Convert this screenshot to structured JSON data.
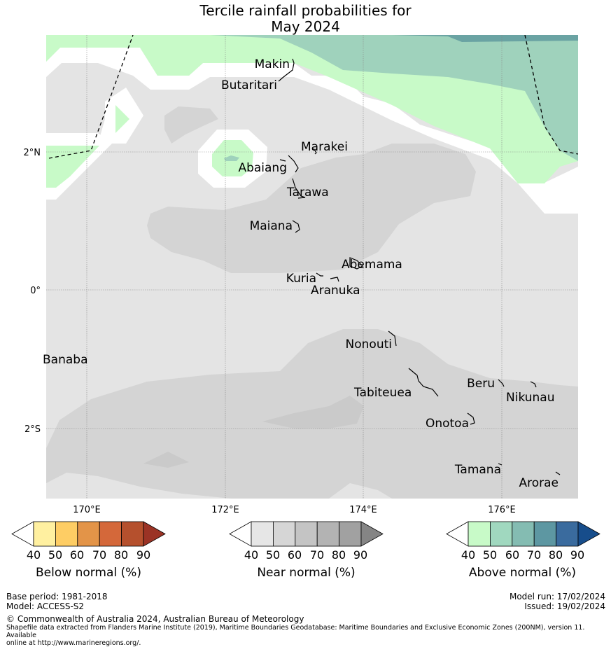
{
  "title_line1": "Tercile rainfall probabilities for",
  "title_line2": "May 2024",
  "colors": {
    "near_40": "#e4e4e4",
    "near_50": "#d4d4d4",
    "white": "#ffffff",
    "above_40": "#c8fac8",
    "above_50": "#9fd2bc",
    "above_70": "#6aa3a3"
  },
  "axes": {
    "lon_ticks": [
      "170°E",
      "172°E",
      "174°E",
      "176°E"
    ],
    "lat_ticks": [
      "2°N",
      "0°",
      "2°S"
    ]
  },
  "islands": [
    {
      "name": "Makin"
    },
    {
      "name": "Butaritari"
    },
    {
      "name": "Marakei"
    },
    {
      "name": "Abaiang"
    },
    {
      "name": "Tarawa"
    },
    {
      "name": "Maiana"
    },
    {
      "name": "Abemama"
    },
    {
      "name": "Kuria"
    },
    {
      "name": "Aranuka"
    },
    {
      "name": "Nonouti"
    },
    {
      "name": "Banaba"
    },
    {
      "name": "Beru"
    },
    {
      "name": "Tabiteuea"
    },
    {
      "name": "Nikunau"
    },
    {
      "name": "Onotoa"
    },
    {
      "name": "Tamana"
    },
    {
      "name": "Arorae"
    }
  ],
  "colorbars": {
    "below": {
      "label": "Below normal (%)",
      "ticks": [
        "40",
        "50",
        "60",
        "70",
        "80",
        "90"
      ],
      "colors": [
        "#fff0a0",
        "#fecd64",
        "#e39448",
        "#d4683a",
        "#b5502d"
      ],
      "arrow": "#9b3325"
    },
    "near": {
      "label": "Near normal (%)",
      "ticks": [
        "40",
        "50",
        "60",
        "70",
        "80",
        "90"
      ],
      "colors": [
        "#e6e6e6",
        "#d6d6d6",
        "#c4c4c4",
        "#b3b3b3",
        "#a1a1a1"
      ],
      "arrow": "#858585"
    },
    "above": {
      "label": "Above normal (%)",
      "ticks": [
        "40",
        "50",
        "60",
        "70",
        "80",
        "90"
      ],
      "colors": [
        "#c8fac8",
        "#a0d8bf",
        "#84bcb2",
        "#5d97a2",
        "#3a6b9e"
      ],
      "arrow": "#174d8b"
    }
  },
  "footer": {
    "base_period": "Base period: 1981-2018",
    "model": "Model: ACCESS-S2",
    "model_run": "Model run: 17/02/2024",
    "issued": "Issued: 19/02/2024",
    "copyright": "© Commonwealth of Australia 2024, Australian Bureau of Meteorology",
    "shapefile_line1": "Shapefile data extracted from Flanders Marine Institute (2019), Maritime Boundaries Geodatabase: Maritime Boundaries and Exclusive Economic Zones (200NM), version 11. Available",
    "shapefile_line2": "online at http://www.marineregions.org/."
  }
}
